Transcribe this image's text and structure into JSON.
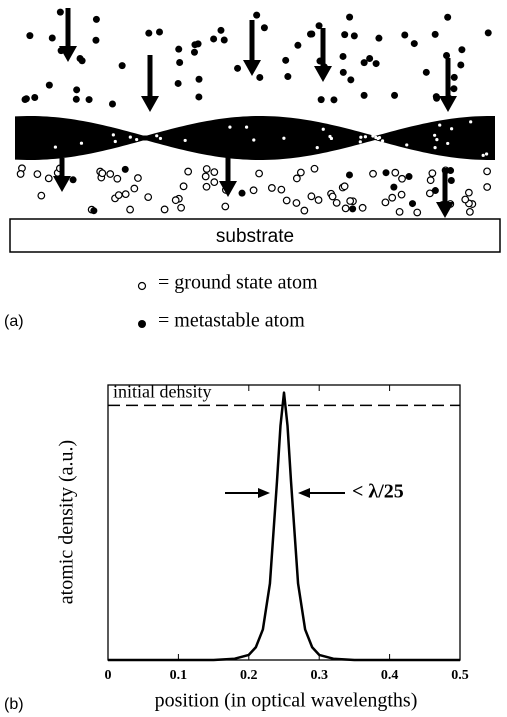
{
  "panel_a": {
    "label": "(a)",
    "substrate": "substrate",
    "legend": [
      "= ground state atom",
      "= metastable atom"
    ]
  },
  "panel_b": {
    "label": "(b)"
  },
  "chart_data": {
    "type": "line",
    "xlabel": "position (in optical wavelengths)",
    "ylabel": "atomic density (a.u.)",
    "x": [
      0,
      0.15,
      0.18,
      0.2,
      0.21,
      0.22,
      0.23,
      0.24,
      0.245,
      0.25,
      0.255,
      0.26,
      0.27,
      0.28,
      0.29,
      0.3,
      0.32,
      0.35,
      0.5
    ],
    "series": [
      {
        "color": "#000000",
        "values": [
          0,
          0,
          0.005,
          0.02,
          0.05,
          0.12,
          0.3,
          0.7,
          0.92,
          1.05,
          0.92,
          0.7,
          0.3,
          0.12,
          0.05,
          0.02,
          0.005,
          0,
          0
        ]
      }
    ],
    "xlim": [
      0,
      0.5
    ],
    "ylim": [
      0,
      1.08
    ],
    "xticks": [
      0,
      0.1,
      0.2,
      0.3,
      0.4,
      0.5
    ],
    "reference_line": {
      "value": 1,
      "label": "initial density"
    },
    "annotation": "< λ/25"
  }
}
